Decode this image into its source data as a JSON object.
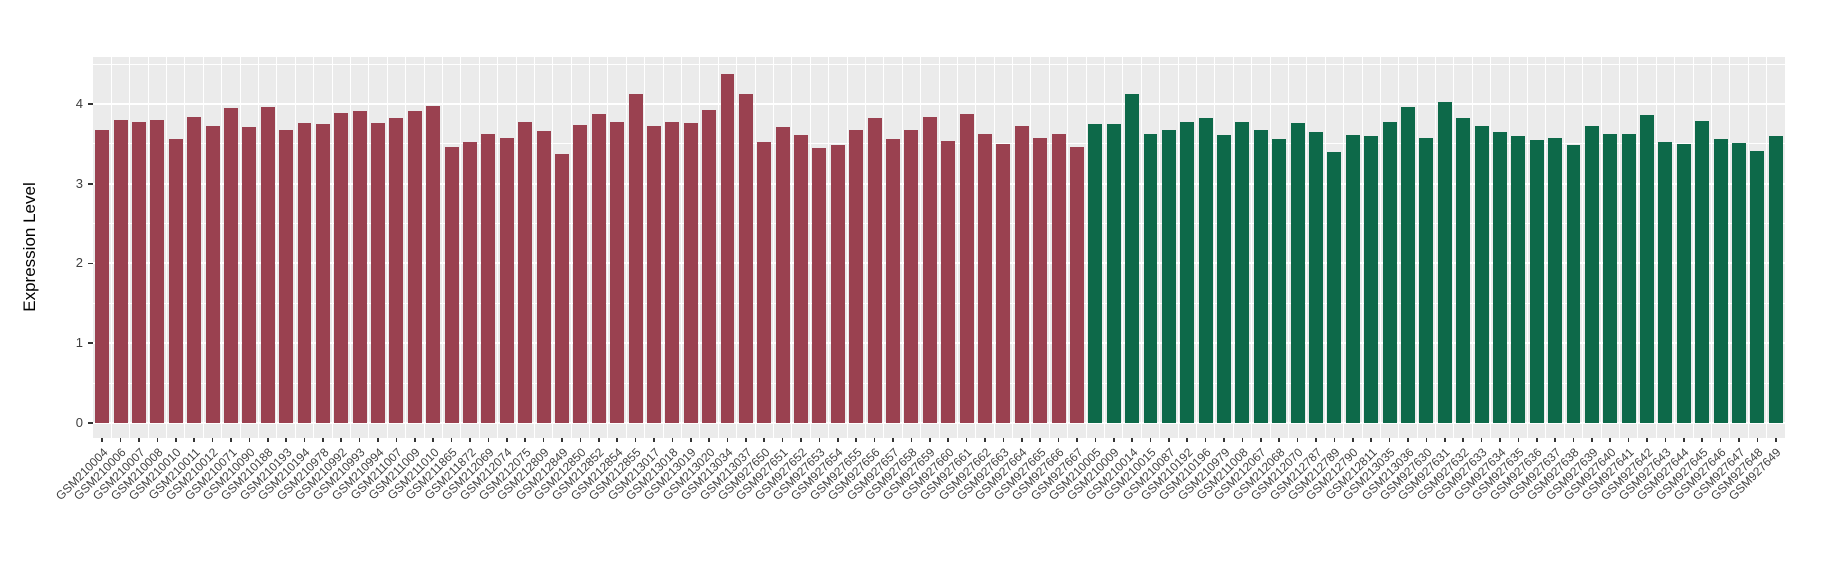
{
  "chart_data": {
    "type": "bar",
    "title": "",
    "xlabel": "",
    "ylabel": "Expression Level",
    "y_ticks": [
      0,
      1,
      2,
      3,
      4
    ],
    "y_minor_ticks": [
      0.5,
      1.5,
      2.5,
      3.5,
      4.5
    ],
    "ylim_display": [
      -0.19,
      4.59
    ],
    "grid": "on",
    "legend_position": "none",
    "x_tick_rotation_deg": 45,
    "colors": {
      "group1": "#9A4150",
      "group2": "#0D6949",
      "panel_bg": "#EBEBEB",
      "grid": "#FFFFFF",
      "tick": "#333333",
      "axis_text": "#404040",
      "axis_title": "#000000"
    },
    "bar_width_fraction": 0.76,
    "bars": [
      {
        "label": "GSM210004",
        "value": 3.67,
        "group": "group1"
      },
      {
        "label": "GSM210006",
        "value": 3.8,
        "group": "group1"
      },
      {
        "label": "GSM210007",
        "value": 3.77,
        "group": "group1"
      },
      {
        "label": "GSM210008",
        "value": 3.8,
        "group": "group1"
      },
      {
        "label": "GSM210010",
        "value": 3.56,
        "group": "group1"
      },
      {
        "label": "GSM210011",
        "value": 3.84,
        "group": "group1"
      },
      {
        "label": "GSM210012",
        "value": 3.72,
        "group": "group1"
      },
      {
        "label": "GSM210071",
        "value": 3.95,
        "group": "group1"
      },
      {
        "label": "GSM210090",
        "value": 3.71,
        "group": "group1"
      },
      {
        "label": "GSM210188",
        "value": 3.96,
        "group": "group1"
      },
      {
        "label": "GSM210193",
        "value": 3.68,
        "group": "group1"
      },
      {
        "label": "GSM210194",
        "value": 3.76,
        "group": "group1"
      },
      {
        "label": "GSM210978",
        "value": 3.75,
        "group": "group1"
      },
      {
        "label": "GSM210992",
        "value": 3.89,
        "group": "group1"
      },
      {
        "label": "GSM210993",
        "value": 3.91,
        "group": "group1"
      },
      {
        "label": "GSM210994",
        "value": 3.76,
        "group": "group1"
      },
      {
        "label": "GSM211007",
        "value": 3.82,
        "group": "group1"
      },
      {
        "label": "GSM211009",
        "value": 3.91,
        "group": "group1"
      },
      {
        "label": "GSM211010",
        "value": 3.98,
        "group": "group1"
      },
      {
        "label": "GSM211865",
        "value": 3.46,
        "group": "group1"
      },
      {
        "label": "GSM211872",
        "value": 3.52,
        "group": "group1"
      },
      {
        "label": "GSM212069",
        "value": 3.62,
        "group": "group1"
      },
      {
        "label": "GSM212074",
        "value": 3.58,
        "group": "group1"
      },
      {
        "label": "GSM212075",
        "value": 3.77,
        "group": "group1"
      },
      {
        "label": "GSM212809",
        "value": 3.66,
        "group": "group1"
      },
      {
        "label": "GSM212849",
        "value": 3.37,
        "group": "group1"
      },
      {
        "label": "GSM212850",
        "value": 3.74,
        "group": "group1"
      },
      {
        "label": "GSM212852",
        "value": 3.88,
        "group": "group1"
      },
      {
        "label": "GSM212854",
        "value": 3.77,
        "group": "group1"
      },
      {
        "label": "GSM212855",
        "value": 4.13,
        "group": "group1"
      },
      {
        "label": "GSM213017",
        "value": 3.73,
        "group": "group1"
      },
      {
        "label": "GSM213018",
        "value": 3.77,
        "group": "group1"
      },
      {
        "label": "GSM213019",
        "value": 3.76,
        "group": "group1"
      },
      {
        "label": "GSM213020",
        "value": 3.92,
        "group": "group1"
      },
      {
        "label": "GSM213034",
        "value": 4.38,
        "group": "group1"
      },
      {
        "label": "GSM213037",
        "value": 4.12,
        "group": "group1"
      },
      {
        "label": "GSM927650",
        "value": 3.53,
        "group": "group1"
      },
      {
        "label": "GSM927651",
        "value": 3.71,
        "group": "group1"
      },
      {
        "label": "GSM927652",
        "value": 3.61,
        "group": "group1"
      },
      {
        "label": "GSM927653",
        "value": 3.45,
        "group": "group1"
      },
      {
        "label": "GSM927654",
        "value": 3.49,
        "group": "group1"
      },
      {
        "label": "GSM927655",
        "value": 3.68,
        "group": "group1"
      },
      {
        "label": "GSM927656",
        "value": 3.83,
        "group": "group1"
      },
      {
        "label": "GSM927657",
        "value": 3.56,
        "group": "group1"
      },
      {
        "label": "GSM927658",
        "value": 3.67,
        "group": "group1"
      },
      {
        "label": "GSM927659",
        "value": 3.84,
        "group": "group1"
      },
      {
        "label": "GSM927660",
        "value": 3.54,
        "group": "group1"
      },
      {
        "label": "GSM927661",
        "value": 3.87,
        "group": "group1"
      },
      {
        "label": "GSM927662",
        "value": 3.62,
        "group": "group1"
      },
      {
        "label": "GSM927663",
        "value": 3.5,
        "group": "group1"
      },
      {
        "label": "GSM927664",
        "value": 3.73,
        "group": "group1"
      },
      {
        "label": "GSM927665",
        "value": 3.57,
        "group": "group1"
      },
      {
        "label": "GSM927666",
        "value": 3.62,
        "group": "group1"
      },
      {
        "label": "GSM927667",
        "value": 3.46,
        "group": "group1"
      },
      {
        "label": "GSM210005",
        "value": 3.75,
        "group": "group2"
      },
      {
        "label": "GSM210009",
        "value": 3.75,
        "group": "group2"
      },
      {
        "label": "GSM210014",
        "value": 4.13,
        "group": "group2"
      },
      {
        "label": "GSM210015",
        "value": 3.63,
        "group": "group2"
      },
      {
        "label": "GSM210087",
        "value": 3.67,
        "group": "group2"
      },
      {
        "label": "GSM210192",
        "value": 3.78,
        "group": "group2"
      },
      {
        "label": "GSM210196",
        "value": 3.83,
        "group": "group2"
      },
      {
        "label": "GSM210979",
        "value": 3.61,
        "group": "group2"
      },
      {
        "label": "GSM211008",
        "value": 3.78,
        "group": "group2"
      },
      {
        "label": "GSM212067",
        "value": 3.67,
        "group": "group2"
      },
      {
        "label": "GSM212068",
        "value": 3.56,
        "group": "group2"
      },
      {
        "label": "GSM212070",
        "value": 3.76,
        "group": "group2"
      },
      {
        "label": "GSM212787",
        "value": 3.65,
        "group": "group2"
      },
      {
        "label": "GSM212789",
        "value": 3.4,
        "group": "group2"
      },
      {
        "label": "GSM212790",
        "value": 3.61,
        "group": "group2"
      },
      {
        "label": "GSM212811",
        "value": 3.6,
        "group": "group2"
      },
      {
        "label": "GSM213035",
        "value": 3.78,
        "group": "group2"
      },
      {
        "label": "GSM213036",
        "value": 3.96,
        "group": "group2"
      },
      {
        "label": "GSM927630",
        "value": 3.58,
        "group": "group2"
      },
      {
        "label": "GSM927631",
        "value": 4.02,
        "group": "group2"
      },
      {
        "label": "GSM927632",
        "value": 3.83,
        "group": "group2"
      },
      {
        "label": "GSM927633",
        "value": 3.73,
        "group": "group2"
      },
      {
        "label": "GSM927634",
        "value": 3.65,
        "group": "group2"
      },
      {
        "label": "GSM927635",
        "value": 3.6,
        "group": "group2"
      },
      {
        "label": "GSM927636",
        "value": 3.55,
        "group": "group2"
      },
      {
        "label": "GSM927637",
        "value": 3.58,
        "group": "group2"
      },
      {
        "label": "GSM927638",
        "value": 3.48,
        "group": "group2"
      },
      {
        "label": "GSM927639",
        "value": 3.72,
        "group": "group2"
      },
      {
        "label": "GSM927640",
        "value": 3.62,
        "group": "group2"
      },
      {
        "label": "GSM927641",
        "value": 3.63,
        "group": "group2"
      },
      {
        "label": "GSM927642",
        "value": 3.86,
        "group": "group2"
      },
      {
        "label": "GSM927643",
        "value": 3.53,
        "group": "group2"
      },
      {
        "label": "GSM927644",
        "value": 3.5,
        "group": "group2"
      },
      {
        "label": "GSM927645",
        "value": 3.79,
        "group": "group2"
      },
      {
        "label": "GSM927646",
        "value": 3.56,
        "group": "group2"
      },
      {
        "label": "GSM927647",
        "value": 3.51,
        "group": "group2"
      },
      {
        "label": "GSM927648",
        "value": 3.41,
        "group": "group2"
      },
      {
        "label": "GSM927649",
        "value": 3.6,
        "group": "group2"
      }
    ]
  }
}
